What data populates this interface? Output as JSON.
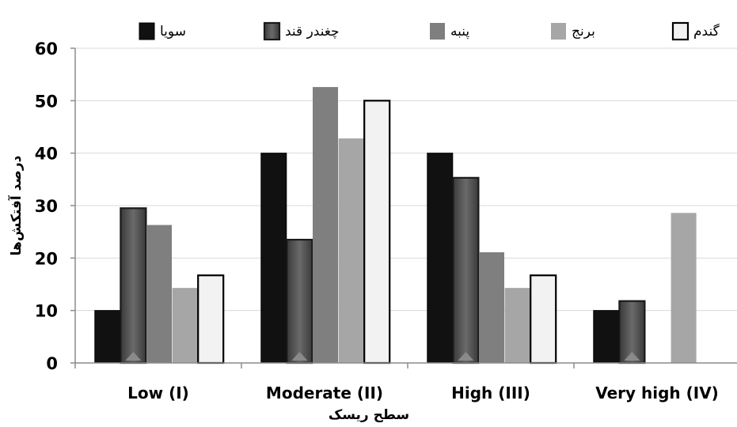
{
  "chart_data": {
    "type": "bar",
    "categories": [
      "Low (I)",
      "Moderate (II)",
      "High (III)",
      "Very high (IV)"
    ],
    "series": [
      {
        "name": "سویا",
        "values": [
          10,
          40,
          40,
          10
        ],
        "color": "#111111"
      },
      {
        "name": "چغندر قند",
        "values": [
          29.5,
          23.5,
          35.3,
          11.8
        ],
        "color": "#4d4d4d"
      },
      {
        "name": "پنبه",
        "values": [
          26.3,
          52.6,
          21.1,
          0
        ],
        "color": "#7f7f7f"
      },
      {
        "name": "برنج",
        "values": [
          14.3,
          42.8,
          14.3,
          28.6
        ],
        "color": "#a6a6a6"
      },
      {
        "name": "گندم",
        "values": [
          16.7,
          50,
          16.7,
          0
        ],
        "color": "#f2f2f2"
      }
    ],
    "ylim": [
      0,
      60
    ],
    "yticks": [
      0,
      10,
      20,
      30,
      40,
      50,
      60
    ],
    "xlabel": "سطح ریسک",
    "ylabel": "درصد آفتکش‌ها",
    "grid": true,
    "legend_position": "top"
  }
}
